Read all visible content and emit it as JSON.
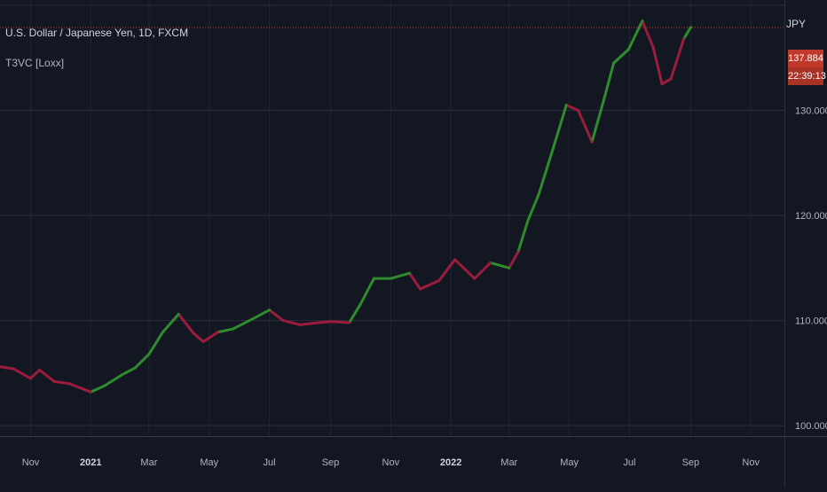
{
  "chart": {
    "symbol_title": "U.S. Dollar / Japanese Yen, 1D, FXCM",
    "indicator_name": "T3VC [Loxx]",
    "currency": "JPY",
    "last_price_label": "137.884",
    "countdown_label": "22:39:13",
    "colors": {
      "background": "#131722",
      "grid": "#2a2e39",
      "bull": "#2e8b2e",
      "bear": "#9b1c3c",
      "last_price_line": "#c0392b",
      "tag": "#c0392b",
      "axis_text": "#b2b5be"
    }
  },
  "chart_data": {
    "type": "line",
    "title": "U.S. Dollar / Japanese Yen, 1D, FXCM",
    "xlabel": "",
    "ylabel": "",
    "ylim": [
      99,
      140.5
    ],
    "y_ticks": [
      100,
      110,
      120,
      130
    ],
    "y_tick_labels": [
      "100.000",
      "110.000",
      "120.000",
      "130.000"
    ],
    "x_ticks": [
      {
        "label": "Nov",
        "date": "2020-11-01",
        "bold": false
      },
      {
        "label": "2021",
        "date": "2021-01-01",
        "bold": true
      },
      {
        "label": "Mar",
        "date": "2021-03-01",
        "bold": false
      },
      {
        "label": "May",
        "date": "2021-05-01",
        "bold": false
      },
      {
        "label": "Jul",
        "date": "2021-07-01",
        "bold": false
      },
      {
        "label": "Sep",
        "date": "2021-09-01",
        "bold": false
      },
      {
        "label": "Nov",
        "date": "2021-11-01",
        "bold": false
      },
      {
        "label": "2022",
        "date": "2022-01-01",
        "bold": true
      },
      {
        "label": "Mar",
        "date": "2022-03-01",
        "bold": false
      },
      {
        "label": "May",
        "date": "2022-05-01",
        "bold": false
      },
      {
        "label": "Jul",
        "date": "2022-07-01",
        "bold": false
      },
      {
        "label": "Sep",
        "date": "2022-09-01",
        "bold": false
      },
      {
        "label": "Nov",
        "date": "2022-11-01",
        "bold": false
      }
    ],
    "x_range": [
      "2020-10-01",
      "2022-12-05"
    ],
    "last_price": 137.884,
    "grid": true,
    "series": [
      {
        "points": [
          {
            "date": "2020-10-01",
            "close": 105.6,
            "trend": "bear"
          },
          {
            "date": "2020-10-15",
            "close": 105.4,
            "trend": "bear"
          },
          {
            "date": "2020-11-01",
            "close": 104.5,
            "trend": "bear"
          },
          {
            "date": "2020-11-10",
            "close": 105.3,
            "trend": "bear"
          },
          {
            "date": "2020-11-25",
            "close": 104.2,
            "trend": "bear"
          },
          {
            "date": "2020-12-10",
            "close": 104.0,
            "trend": "bear"
          },
          {
            "date": "2021-01-01",
            "close": 103.2,
            "trend": "bear"
          },
          {
            "date": "2021-01-15",
            "close": 103.8,
            "trend": "bull"
          },
          {
            "date": "2021-02-01",
            "close": 104.8,
            "trend": "bull"
          },
          {
            "date": "2021-02-15",
            "close": 105.5,
            "trend": "bull"
          },
          {
            "date": "2021-03-01",
            "close": 106.8,
            "trend": "bull"
          },
          {
            "date": "2021-03-15",
            "close": 108.9,
            "trend": "bull"
          },
          {
            "date": "2021-03-31",
            "close": 110.6,
            "trend": "bull"
          },
          {
            "date": "2021-04-15",
            "close": 108.8,
            "trend": "bear"
          },
          {
            "date": "2021-04-25",
            "close": 108.0,
            "trend": "bear"
          },
          {
            "date": "2021-05-10",
            "close": 108.9,
            "trend": "bear"
          },
          {
            "date": "2021-05-25",
            "close": 109.2,
            "trend": "bull"
          },
          {
            "date": "2021-06-15",
            "close": 110.2,
            "trend": "bull"
          },
          {
            "date": "2021-07-01",
            "close": 111.0,
            "trend": "bull"
          },
          {
            "date": "2021-07-15",
            "close": 110.0,
            "trend": "bear"
          },
          {
            "date": "2021-08-01",
            "close": 109.6,
            "trend": "bear"
          },
          {
            "date": "2021-08-20",
            "close": 109.8,
            "trend": "bear"
          },
          {
            "date": "2021-09-01",
            "close": 109.9,
            "trend": "bear"
          },
          {
            "date": "2021-09-20",
            "close": 109.8,
            "trend": "bear"
          },
          {
            "date": "2021-10-01",
            "close": 111.5,
            "trend": "bull"
          },
          {
            "date": "2021-10-15",
            "close": 114.0,
            "trend": "bull"
          },
          {
            "date": "2021-11-01",
            "close": 114.0,
            "trend": "bull"
          },
          {
            "date": "2021-11-20",
            "close": 114.5,
            "trend": "bull"
          },
          {
            "date": "2021-12-01",
            "close": 113.0,
            "trend": "bear"
          },
          {
            "date": "2021-12-20",
            "close": 113.8,
            "trend": "bear"
          },
          {
            "date": "2022-01-05",
            "close": 115.8,
            "trend": "bear"
          },
          {
            "date": "2022-01-25",
            "close": 114.0,
            "trend": "bear"
          },
          {
            "date": "2022-02-10",
            "close": 115.5,
            "trend": "bear"
          },
          {
            "date": "2022-03-01",
            "close": 115.0,
            "trend": "bull"
          },
          {
            "date": "2022-03-10",
            "close": 116.5,
            "trend": "bear"
          },
          {
            "date": "2022-03-20",
            "close": 119.5,
            "trend": "bull"
          },
          {
            "date": "2022-03-31",
            "close": 122.0,
            "trend": "bull"
          },
          {
            "date": "2022-04-15",
            "close": 126.5,
            "trend": "bull"
          },
          {
            "date": "2022-04-28",
            "close": 130.5,
            "trend": "bull"
          },
          {
            "date": "2022-05-10",
            "close": 130.0,
            "trend": "bear"
          },
          {
            "date": "2022-05-24",
            "close": 127.0,
            "trend": "bear"
          },
          {
            "date": "2022-06-05",
            "close": 131.0,
            "trend": "bull"
          },
          {
            "date": "2022-06-15",
            "close": 134.5,
            "trend": "bull"
          },
          {
            "date": "2022-06-30",
            "close": 135.8,
            "trend": "bull"
          },
          {
            "date": "2022-07-14",
            "close": 138.5,
            "trend": "bull"
          },
          {
            "date": "2022-07-25",
            "close": 136.0,
            "trend": "bear"
          },
          {
            "date": "2022-08-03",
            "close": 132.5,
            "trend": "bear"
          },
          {
            "date": "2022-08-12",
            "close": 133.0,
            "trend": "bear"
          },
          {
            "date": "2022-08-25",
            "close": 136.8,
            "trend": "bear"
          },
          {
            "date": "2022-09-01",
            "close": 137.9,
            "trend": "bull"
          }
        ]
      }
    ]
  }
}
